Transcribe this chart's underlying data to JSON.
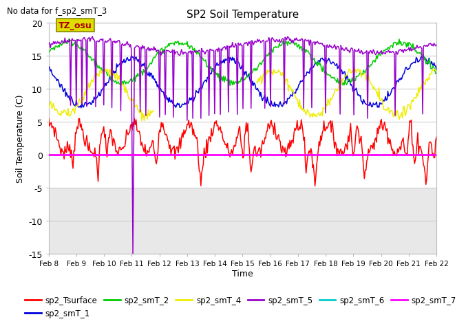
{
  "title": "SP2 Soil Temperature",
  "no_data_text": "No data for f_sp2_smT_3",
  "tz_label": "TZ_osu",
  "ylabel": "Soil Temperature (C)",
  "xlabel": "Time",
  "ylim": [
    -15,
    20
  ],
  "yticks": [
    -15,
    -10,
    -5,
    0,
    5,
    10,
    15,
    20
  ],
  "x_tick_labels": [
    "Feb 8",
    "Feb 9",
    "Feb 10",
    "Feb 11",
    "Feb 12",
    "Feb 13",
    "Feb 14",
    "Feb 15",
    "Feb 16",
    "Feb 17",
    "Feb 18",
    "Feb 19",
    "Feb 20",
    "Feb 21",
    "Feb 22"
  ],
  "colors": {
    "sp2_Tsurface": "#ff0000",
    "sp2_smT_1": "#0000dd",
    "sp2_smT_2": "#00cc00",
    "sp2_smT_4": "#eeee00",
    "sp2_smT_5": "#9900cc",
    "sp2_smT_6": "#00cccc",
    "sp2_smT_7": "#ff00ff"
  },
  "fig_facecolor": "#ffffff",
  "plot_bg_above": "#ffffff",
  "plot_bg_below": "#e8e8e8",
  "grid_color": "#cccccc",
  "tz_box_facecolor": "#dddd00",
  "tz_box_edgecolor": "#888800",
  "tz_text_color": "#aa0000",
  "band_threshold": -5,
  "legend_ncol": 6
}
